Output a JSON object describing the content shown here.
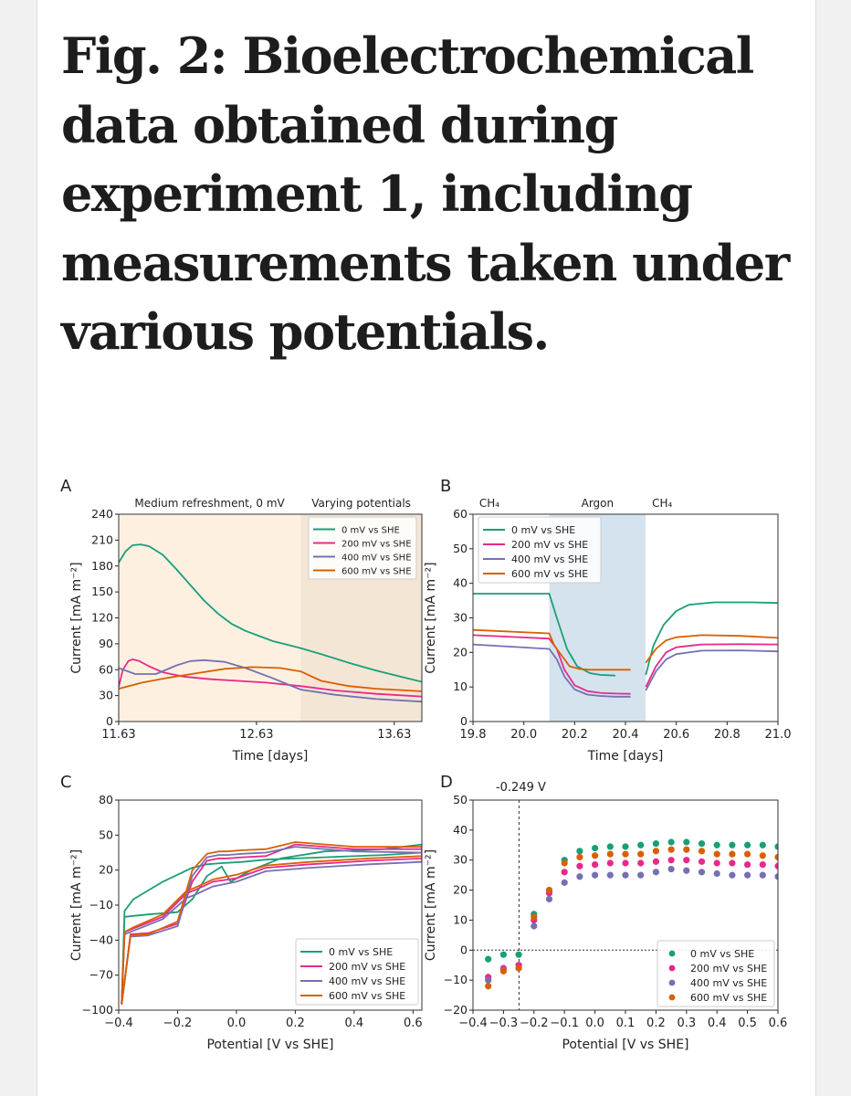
{
  "title": "Fig. 2: Bioelectrochemical data obtained during experiment 1, including measurements taken under various potentials.",
  "colors": {
    "green": "#1b9e77",
    "pink": "#e7298a",
    "purple": "#7570b3",
    "orange": "#d95f02"
  },
  "chart_data": [
    {
      "panel": "A",
      "type": "line",
      "xlabel": "Time [days]",
      "ylabel": "Current [mA m⁻²]",
      "xlim": [
        11.63,
        13.83
      ],
      "ylim": [
        0,
        240
      ],
      "xticks": [
        "11.63",
        "12.63",
        "13.63"
      ],
      "xtick_values": [
        11.63,
        12.63,
        13.63
      ],
      "yticks": [
        "0",
        "30",
        "60",
        "90",
        "120",
        "150",
        "180",
        "210",
        "240"
      ],
      "ytick_values": [
        0,
        30,
        60,
        90,
        120,
        150,
        180,
        210,
        240
      ],
      "regions": [
        {
          "label": "Medium refreshment, 0 mV",
          "x0": 11.63,
          "x1": 12.95,
          "color": "#fdf0e1"
        },
        {
          "label": "Varying potentials",
          "x0": 12.95,
          "x1": 13.83,
          "color": "#f4e6d5"
        }
      ],
      "legend": {
        "position": "top-right",
        "entries": [
          "0 mV vs SHE",
          "200 mV vs SHE",
          "400 mV vs SHE",
          "600 mV vs SHE"
        ]
      },
      "series": [
        {
          "name": "0 mV vs SHE",
          "color": "#1b9e77",
          "x": [
            11.63,
            11.68,
            11.73,
            11.79,
            11.85,
            11.95,
            12.05,
            12.15,
            12.25,
            12.35,
            12.45,
            12.55,
            12.65,
            12.75,
            12.85,
            12.95,
            13.1,
            13.3,
            13.5,
            13.7,
            13.83
          ],
          "y": [
            184,
            197,
            204,
            205,
            203,
            193,
            176,
            158,
            140,
            125,
            113,
            105,
            99,
            93,
            89,
            85,
            78,
            68,
            59,
            51,
            46
          ]
        },
        {
          "name": "200 mV vs SHE",
          "color": "#e7298a",
          "x": [
            11.63,
            11.66,
            11.7,
            11.73,
            11.78,
            11.85,
            11.95,
            12.1,
            12.3,
            12.5,
            12.7,
            12.95,
            13.2,
            13.5,
            13.83
          ],
          "y": [
            40,
            60,
            70,
            72,
            70,
            64,
            57,
            52,
            49,
            47,
            45,
            41,
            36,
            32,
            29
          ]
        },
        {
          "name": "400 mV vs SHE",
          "color": "#7570b3",
          "x": [
            11.63,
            11.75,
            11.9,
            12.05,
            12.15,
            12.25,
            12.4,
            12.55,
            12.75,
            12.95,
            13.2,
            13.5,
            13.83
          ],
          "y": [
            62,
            55,
            55,
            65,
            70,
            71,
            69,
            62,
            50,
            37,
            31,
            26,
            23
          ]
        },
        {
          "name": "600 mV vs SHE",
          "color": "#d95f02",
          "x": [
            11.63,
            11.8,
            12.0,
            12.2,
            12.4,
            12.6,
            12.8,
            12.95,
            13.1,
            13.3,
            13.5,
            13.83
          ],
          "y": [
            38,
            45,
            51,
            56,
            61,
            63,
            62,
            58,
            47,
            41,
            38,
            35
          ]
        }
      ]
    },
    {
      "panel": "B",
      "type": "line",
      "xlabel": "Time [days]",
      "ylabel": "Current [mA m⁻²]",
      "xlim": [
        19.8,
        21.0
      ],
      "ylim": [
        0,
        60
      ],
      "xticks": [
        "19.8",
        "20.0",
        "20.2",
        "20.4",
        "20.6",
        "20.8",
        "21.0"
      ],
      "xtick_values": [
        19.8,
        20.0,
        20.2,
        20.4,
        20.6,
        20.8,
        21.0
      ],
      "yticks": [
        "0",
        "10",
        "20",
        "30",
        "40",
        "50",
        "60"
      ],
      "ytick_values": [
        0,
        10,
        20,
        30,
        40,
        50,
        60
      ],
      "regions": [
        {
          "label": "CH₄",
          "x0": 19.8,
          "x1": 20.1,
          "color": "#ffffff"
        },
        {
          "label": "Argon",
          "x0": 20.1,
          "x1": 20.48,
          "color": "#d5e3ee"
        },
        {
          "label": "CH₄",
          "x0": 20.48,
          "x1": 21.0,
          "color": "#ffffff"
        }
      ],
      "legend": {
        "position": "top-left",
        "entries": [
          "0 mV vs SHE",
          "200 mV vs SHE",
          "400 mV vs SHE",
          "600 mV vs SHE"
        ]
      },
      "series": [
        {
          "name": "0 mV vs SHE",
          "color": "#1b9e77",
          "segments": [
            {
              "x": [
                19.8,
                20.1,
                20.13,
                20.17,
                20.21,
                20.26,
                20.3,
                20.36
              ],
              "y": [
                37,
                37,
                30,
                21,
                16,
                14,
                13.5,
                13.3
              ]
            },
            {
              "x": [
                20.48,
                20.51,
                20.55,
                20.6,
                20.65,
                20.75,
                20.9,
                21.0
              ],
              "y": [
                13.5,
                22,
                28,
                32,
                33.8,
                34.5,
                34.5,
                34.3
              ]
            }
          ]
        },
        {
          "name": "200 mV vs SHE",
          "color": "#e7298a",
          "segments": [
            {
              "x": [
                19.8,
                20.1,
                20.13,
                20.16,
                20.2,
                20.25,
                20.3,
                20.36,
                20.42
              ],
              "y": [
                25,
                24,
                21,
                15,
                10.5,
                8.8,
                8.3,
                8.1,
                8.0
              ]
            },
            {
              "x": [
                20.48,
                20.52,
                20.56,
                20.6,
                20.7,
                20.85,
                21.0
              ],
              "y": [
                10,
                16,
                20,
                21.5,
                22.3,
                22.4,
                22.3
              ]
            }
          ]
        },
        {
          "name": "400 mV vs SHE",
          "color": "#7570b3",
          "segments": [
            {
              "x": [
                19.8,
                20.1,
                20.13,
                20.16,
                20.2,
                20.25,
                20.3,
                20.36,
                20.42
              ],
              "y": [
                22.3,
                21,
                18,
                13,
                9.3,
                7.8,
                7.4,
                7.2,
                7.2
              ]
            },
            {
              "x": [
                20.48,
                20.52,
                20.56,
                20.6,
                20.7,
                20.85,
                21.0
              ],
              "y": [
                9,
                14.5,
                18,
                19.5,
                20.5,
                20.6,
                20.3
              ]
            }
          ]
        },
        {
          "name": "600 mV vs SHE",
          "color": "#d95f02",
          "segments": [
            {
              "x": [
                19.8,
                20.1,
                20.12,
                20.15,
                20.18,
                20.22,
                20.26,
                20.3,
                20.36,
                20.42
              ],
              "y": [
                26.5,
                25.5,
                22,
                19,
                16,
                15.2,
                15,
                15,
                15,
                15
              ]
            },
            {
              "x": [
                20.48,
                20.52,
                20.56,
                20.6,
                20.7,
                20.85,
                21.0
              ],
              "y": [
                17,
                21,
                23.5,
                24.4,
                25,
                24.8,
                24.2
              ]
            }
          ]
        }
      ]
    },
    {
      "panel": "C",
      "type": "line",
      "xlabel": "Potential [V vs SHE]",
      "ylabel": "Current [mA m⁻²]",
      "xlim": [
        -0.4,
        0.63
      ],
      "ylim": [
        -100,
        80
      ],
      "xticks": [
        "−0.4",
        "−0.2",
        "0.0",
        "0.2",
        "0.4",
        "0.6"
      ],
      "xtick_values": [
        -0.4,
        -0.2,
        0,
        0.2,
        0.4,
        0.6
      ],
      "yticks": [
        "−100",
        "−70",
        "−40",
        "−10",
        "20",
        "50",
        "80"
      ],
      "ytick_values": [
        -100,
        -70,
        -40,
        -10,
        20,
        50,
        80
      ],
      "legend": {
        "position": "bottom-right",
        "entries": [
          "0 mV vs SHE",
          "200 mV vs SHE",
          "400 mV vs SHE",
          "600 mV vs SHE"
        ]
      },
      "series": [
        {
          "name": "0 mV vs SHE",
          "color": "#1b9e77",
          "x": [
            -0.39,
            -0.38,
            -0.3,
            -0.2,
            -0.15,
            -0.1,
            -0.05,
            -0.02,
            0.05,
            0.15,
            0.3,
            0.5,
            0.63,
            0.63,
            0.5,
            0.3,
            0.2,
            0.1,
            0.02,
            -0.05,
            -0.1,
            -0.15,
            -0.25,
            -0.35,
            -0.38,
            -0.39
          ],
          "y": [
            -95,
            -20,
            -18,
            -16,
            -5,
            15,
            23,
            10,
            20,
            30,
            36,
            38,
            42,
            35,
            33,
            31,
            30,
            29,
            27,
            26,
            25,
            22,
            10,
            -5,
            -15,
            -95
          ]
        },
        {
          "name": "200 mV vs SHE",
          "color": "#e7298a",
          "x": [
            -0.39,
            -0.36,
            -0.3,
            -0.2,
            -0.15,
            -0.1,
            -0.06,
            -0.03,
            0.02,
            0.1,
            0.2,
            0.4,
            0.63,
            0.63,
            0.45,
            0.25,
            0.1,
            0.0,
            -0.08,
            -0.14,
            -0.17,
            -0.25,
            -0.35,
            -0.38,
            -0.39
          ],
          "y": [
            -95,
            -35,
            -34,
            -26,
            10,
            28,
            30,
            30,
            31,
            32,
            42,
            38,
            38,
            30,
            28,
            25,
            22,
            13,
            10,
            3,
            0,
            -20,
            -30,
            -33,
            -95
          ]
        },
        {
          "name": "400 mV vs SHE",
          "color": "#7570b3",
          "x": [
            -0.39,
            -0.36,
            -0.3,
            -0.2,
            -0.15,
            -0.1,
            -0.06,
            -0.03,
            0.02,
            0.1,
            0.2,
            0.4,
            0.63,
            0.63,
            0.45,
            0.25,
            0.1,
            0.0,
            -0.08,
            -0.14,
            -0.17,
            -0.25,
            -0.35,
            -0.38,
            -0.39
          ],
          "y": [
            -95,
            -37,
            -36,
            -28,
            15,
            31,
            33,
            33,
            34,
            35,
            40,
            36,
            35,
            27,
            25,
            22,
            19,
            10,
            6,
            -1,
            -4,
            -22,
            -32,
            -35,
            -95
          ]
        },
        {
          "name": "600 mV vs SHE",
          "color": "#d95f02",
          "x": [
            -0.39,
            -0.36,
            -0.3,
            -0.2,
            -0.15,
            -0.1,
            -0.06,
            -0.03,
            0.02,
            0.1,
            0.2,
            0.4,
            0.63,
            0.63,
            0.45,
            0.25,
            0.1,
            0.0,
            -0.08,
            -0.14,
            -0.17,
            -0.25,
            -0.35,
            -0.38,
            -0.39
          ],
          "y": [
            -95,
            -36,
            -35,
            -24,
            20,
            34,
            36,
            36,
            37,
            38,
            44,
            40,
            40,
            32,
            30,
            27,
            24,
            16,
            12,
            5,
            2,
            -18,
            -29,
            -33,
            -95
          ]
        }
      ]
    },
    {
      "panel": "D",
      "type": "scatter",
      "xlabel": "Potential [V vs SHE]",
      "ylabel": "Current [mA m⁻²]",
      "xlim": [
        -0.4,
        0.6
      ],
      "ylim": [
        -20,
        50
      ],
      "xticks": [
        "−0.4",
        "−0.3",
        "−0.2",
        "−0.1",
        "0.0",
        "0.1",
        "0.2",
        "0.3",
        "0.4",
        "0.5",
        "0.6"
      ],
      "xtick_values": [
        -0.4,
        -0.3,
        -0.2,
        -0.1,
        0,
        0.1,
        0.2,
        0.3,
        0.4,
        0.5,
        0.6
      ],
      "yticks": [
        "−20",
        "−10",
        "0",
        "10",
        "20",
        "30",
        "40",
        "50"
      ],
      "ytick_values": [
        -20,
        -10,
        0,
        10,
        20,
        30,
        40,
        50
      ],
      "annotation": {
        "text": "-0.249 V",
        "x": -0.249
      },
      "legend": {
        "position": "bottom-right",
        "entries": [
          "0 mV vs SHE",
          "200 mV vs SHE",
          "400 mV vs SHE",
          "600 mV vs SHE"
        ]
      },
      "x": [
        -0.35,
        -0.3,
        -0.25,
        -0.2,
        -0.15,
        -0.1,
        -0.05,
        0.0,
        0.05,
        0.1,
        0.15,
        0.2,
        0.25,
        0.3,
        0.35,
        0.4,
        0.45,
        0.5,
        0.55,
        0.6
      ],
      "series": [
        {
          "name": "0 mV vs SHE",
          "color": "#1b9e77",
          "values": [
            -3,
            -1.5,
            -1.5,
            12,
            20,
            30,
            33,
            34,
            34.5,
            34.5,
            35,
            35.5,
            36,
            36,
            35.5,
            35,
            35,
            35,
            35,
            34.5
          ]
        },
        {
          "name": "200 mV vs SHE",
          "color": "#e7298a",
          "values": [
            -9,
            -6,
            -5,
            10,
            19,
            26,
            28,
            28.5,
            29,
            29,
            29,
            29.5,
            30,
            30,
            29.5,
            29,
            29,
            28.5,
            28.5,
            28
          ]
        },
        {
          "name": "400 mV vs SHE",
          "color": "#7570b3",
          "values": [
            -10,
            -6.5,
            -6,
            8,
            17,
            22.5,
            24.5,
            25,
            25,
            25,
            25,
            26,
            27,
            26.5,
            26,
            25.5,
            25,
            25,
            25,
            24.5
          ]
        },
        {
          "name": "600 mV vs SHE",
          "color": "#d95f02",
          "values": [
            -12,
            -7,
            -6,
            11,
            20,
            29,
            31,
            31.5,
            32,
            32,
            32,
            33,
            33.5,
            33.5,
            33,
            32,
            32,
            32,
            31.5,
            31
          ]
        }
      ]
    }
  ]
}
